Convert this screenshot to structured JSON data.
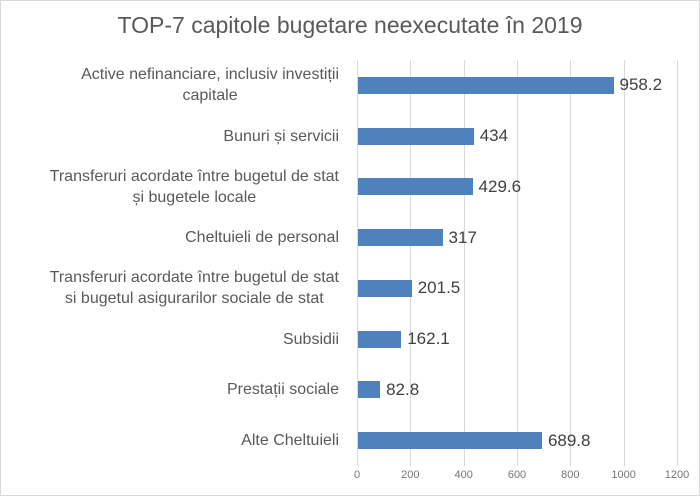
{
  "title": "TOP-7 capitole bugetare neexecutate în 2019",
  "colors": {
    "bar": "#4F81BD",
    "gridline": "#D9D9D9",
    "title_text": "#595959",
    "category_text": "#595959",
    "value_text": "#404040",
    "tick_text": "#757575",
    "border": "#D9D9D9",
    "background": "#FFFFFF"
  },
  "chart_data": {
    "type": "bar",
    "orientation": "horizontal",
    "title": "TOP-7 capitole bugetare neexecutate în 2019",
    "categories": [
      "Active nefinanciare, inclusiv investiții\ncapitale",
      "Bunuri și servicii",
      "Transferuri acordate între bugetul de stat\nși bugetele locale",
      "Cheltuieli de personal",
      "Transferuri acordate între bugetul de stat\nsi bugetul asigurarilor sociale de stat",
      "Subsidii",
      "Prestații sociale",
      "Alte Cheltuieli"
    ],
    "values": [
      958.2,
      434,
      429.6,
      317,
      201.5,
      162.1,
      82.8,
      689.8
    ],
    "value_labels": [
      "958.2",
      "434",
      "429.6",
      "317",
      "201.5",
      "162.1",
      "82.8",
      "689.8"
    ],
    "xlabel": "",
    "ylabel": "",
    "xlim": [
      0,
      1200
    ],
    "x_ticks": [
      0,
      200,
      400,
      600,
      800,
      1000,
      1200
    ],
    "grid": "vertical",
    "legend": "none",
    "data_labels": "outside-end"
  }
}
